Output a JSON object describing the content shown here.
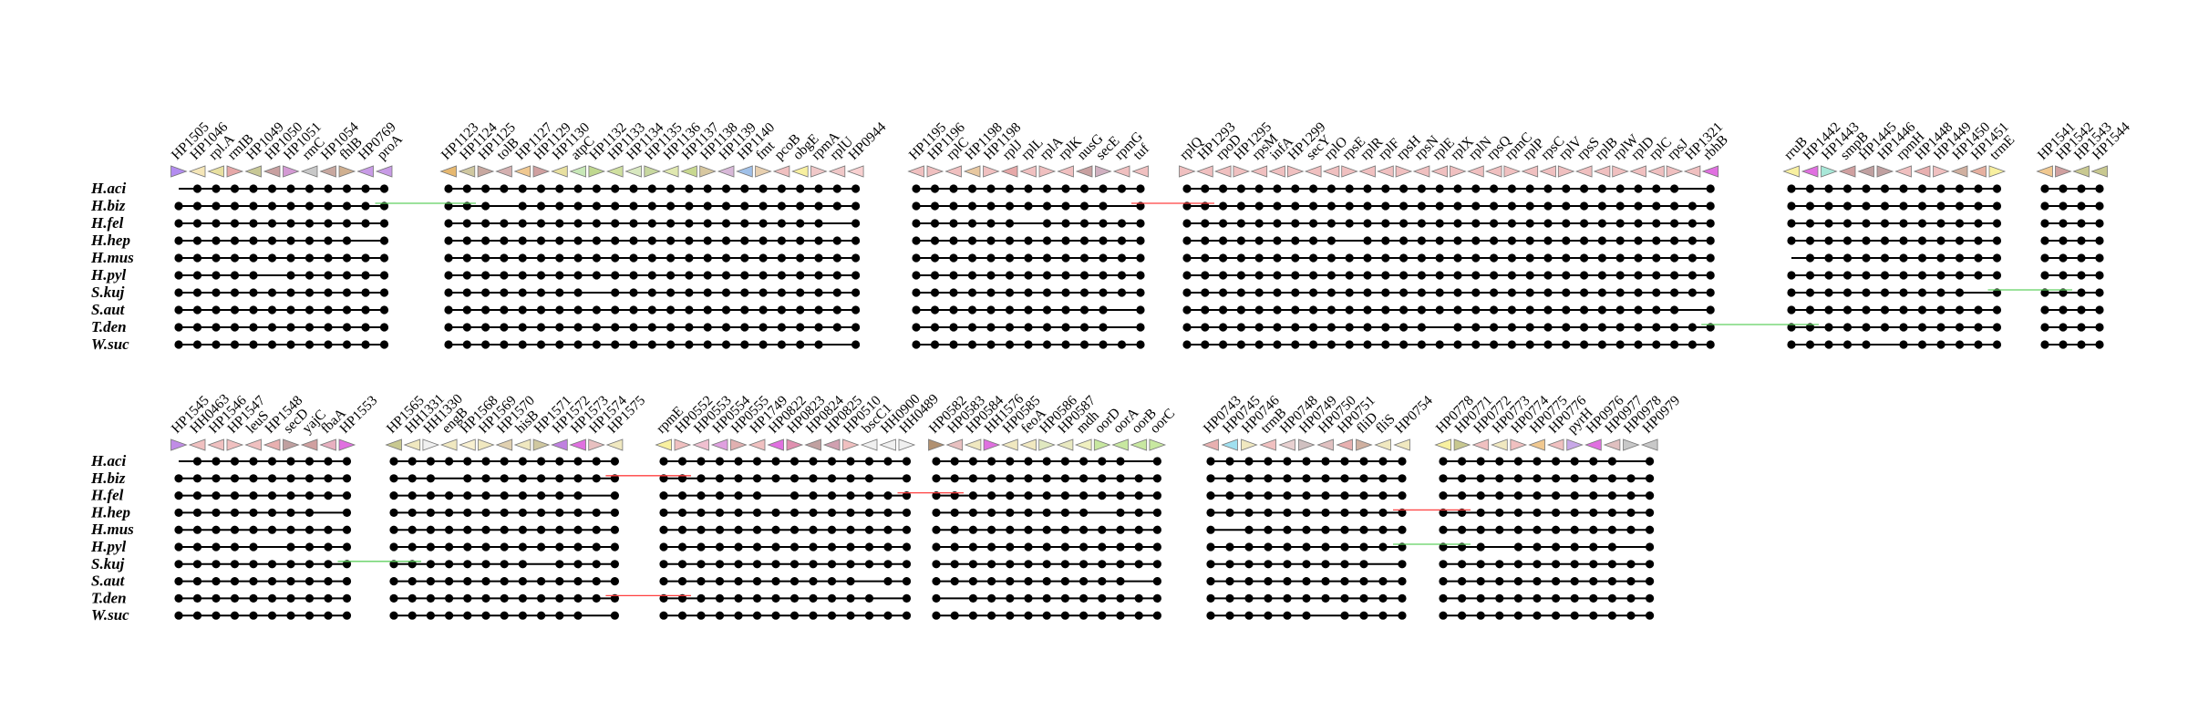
{
  "figure": {
    "description_panel_count": 2
  },
  "panels": [
    {
      "species": [
        "H.aci",
        "H.biz",
        "H.fel",
        "H.hep",
        "H.mus",
        "H.pyl",
        "S.kuj",
        "S.aut",
        "T.den",
        "W.suc"
      ],
      "blocks": [
        {
          "genes": [
            "HP1505",
            "HP1046",
            "rpl.A",
            "rmIB",
            "HP1049",
            "HP1050",
            "HP1051",
            "rmC",
            "HP1054",
            "fhlB",
            "HP0769",
            "proA"
          ],
          "colors": [
            "#b38cf0",
            "#f5e6b8",
            "#e8e0a0",
            "#e6a8a8",
            "#c8c896",
            "#c8a0a0",
            "#d49ad4",
            "#c8c8c8",
            "#c8a8a0",
            "#d0b090",
            "#c89be6",
            "#c89be6"
          ]
        },
        {
          "genes": [
            "HP1123",
            "HP1124",
            "HP1125",
            "tolB",
            "HP1127",
            "HP1129",
            "HP1130",
            "atpC",
            "HP1132",
            "HP1133",
            "HP1134",
            "HP1135",
            "HP1136",
            "HP1137",
            "HP1138",
            "HP1139",
            "HP1140",
            "fmt",
            "pcoB",
            "obgE",
            "rpmA",
            "rplU",
            "HP0944"
          ],
          "colors": [
            "#e6b870",
            "#d0c8a0",
            "#c8a8a0",
            "#d4b0b0",
            "#f0c890",
            "#d0a0a0",
            "#e8e0a0",
            "#c8e8b8",
            "#c0d890",
            "#d0e0a0",
            "#d8e8c0",
            "#c8d8a0",
            "#e0e8b0",
            "#c8d890",
            "#d8c8a0",
            "#d8b8d8",
            "#a0c0e8",
            "#e8d0b0",
            "#f0c0c0",
            "#f8f0a0",
            "#f0c8c8",
            "#f0c8c8",
            "#f8d0d0"
          ]
        },
        {
          "genes": [
            "HP1195",
            "HP1196",
            "rplC",
            "HP1198",
            "HP1198",
            "rplJ",
            "rplL",
            "rplA",
            "rplK",
            "nusG",
            "secE",
            "rpmG",
            "tuf"
          ],
          "colors": [
            "#f0c0c0",
            "#f0c0c0",
            "#f0c0c0",
            "#e8c8a0",
            "#f0c0c0",
            "#e6a8a8",
            "#f0c0c0",
            "#f0c0c0",
            "#f0c0c0",
            "#c8a0a0",
            "#d0b0c0",
            "#f0c0c0",
            "#f0c0c0"
          ]
        },
        {
          "genes": [
            "rplQ",
            "HP1293",
            "rpoD",
            "HP1295",
            "rpsM",
            "infA",
            "HP1299",
            "secY",
            "rplO",
            "rpsE",
            "rplR",
            "rplF",
            "rpsH",
            "rpsN",
            "rplE",
            "rplX",
            "rplN",
            "rpsQ",
            "rpmC",
            "rplP",
            "rpsC",
            "rplV",
            "rpsS",
            "rplB",
            "rplW",
            "rplD",
            "rplC",
            "rpsJ",
            "HP1321",
            "rbhB"
          ],
          "colors": [
            "#f0c0c0",
            "#f0c0c0",
            "#f0c0c0",
            "#f0c0c0",
            "#f0c0c0",
            "#f0c0c0",
            "#f0c0c0",
            "#f0c0c0",
            "#f0c0c0",
            "#f0c0c0",
            "#f0c0c0",
            "#f0c0c0",
            "#f0c0c0",
            "#f0c0c0",
            "#f0c0c0",
            "#f0c0c0",
            "#f0c0c0",
            "#f0c0c0",
            "#f0c0c0",
            "#f0c0c0",
            "#f0c0c0",
            "#f0c0c0",
            "#f0c0c0",
            "#f0c0c0",
            "#f0c0c0",
            "#f0c0c0",
            "#f0c0c0",
            "#f0c0c0",
            "#f0c0c0",
            "#e070e0"
          ]
        },
        {
          "genes": [
            "rruB",
            "HP1442",
            "HP1443",
            "smpB",
            "HP1445",
            "HP1446",
            "rpmH",
            "HP1448",
            "HP1449",
            "HP1450",
            "HP1451",
            "trmE"
          ],
          "colors": [
            "#f8f0a0",
            "#e070e0",
            "#a8e8d8",
            "#d0a0a0",
            "#c0a0a0",
            "#c0a0a0",
            "#f0c0c0",
            "#e8b0b0",
            "#f0c0c0",
            "#d0b0a0",
            "#e6b0a0",
            "#f8f0a0"
          ]
        },
        {
          "genes": [
            "HP1541",
            "HP1542",
            "HP1543",
            "HP1544"
          ],
          "colors": [
            "#f0c890",
            "#d0a0a0",
            "#c8c890",
            "#c8c890"
          ]
        }
      ]
    },
    {
      "species": [
        "H.aci",
        "H.biz",
        "H.fel",
        "H.hep",
        "H.mus",
        "H.pyl",
        "S.kuj",
        "S.aut",
        "T.den",
        "W.suc"
      ],
      "blocks": [
        {
          "genes": [
            "HP1545",
            "HH0463",
            "HP1546",
            "HP1547",
            "leuS",
            "HP1548",
            "secD",
            "yajC",
            "fbaA",
            "HP1553"
          ],
          "colors": [
            "#c08ce6",
            "#f0c0c0",
            "#f0c0c0",
            "#f0c0c0",
            "#f0c0c0",
            "#e8b0b0",
            "#c0a0a0",
            "#d0a0a0",
            "#e8b0c0",
            "#e070e0"
          ]
        },
        {
          "genes": [
            "HP1565",
            "HH1331",
            "HH1330",
            "engB",
            "HP1568",
            "HP1569",
            "HP1570",
            "hisB",
            "HP1571",
            "HP1572",
            "HP1573",
            "HP1574",
            "HP1575"
          ],
          "colors": [
            "#c8c890",
            "#f0e8c0",
            "#f0f0f0",
            "#f0e8c0",
            "#f8f0d0",
            "#f0e8c0",
            "#e0d0b0",
            "#f0e8c0",
            "#d0c8a0",
            "#c080e0",
            "#e070e0",
            "#e8c0c0",
            "#f0e8c0"
          ]
        },
        {
          "genes": [
            "rpmE",
            "HP0552",
            "HP0553",
            "HP0554",
            "HP0555",
            "HP1749",
            "HP0822",
            "HP0823",
            "HP0824",
            "HP0825",
            "HP0510",
            "bscC1",
            "HH0900",
            "HH0489"
          ],
          "colors": [
            "#f8f0a0",
            "#f0c0c0",
            "#f0c0d0",
            "#e0a0e0",
            "#e0b0b0",
            "#f0c0c0",
            "#e070e0",
            "#e090b0",
            "#c0a0a0",
            "#d0a0b0",
            "#f0c0c0",
            "#f0f0f0",
            "#f0f0f0",
            "#f0f0f0"
          ]
        },
        {
          "genes": [
            "HP0582",
            "HP0583",
            "HP0584",
            "HH1576",
            "HP0585",
            "feoA",
            "HP0586",
            "HP0587",
            "mdh",
            "oorD",
            "oorA",
            "oorB",
            "oorC"
          ],
          "colors": [
            "#b09070",
            "#e8c0c0",
            "#f0e8c0",
            "#e070e0",
            "#f0e8c0",
            "#f0e8c0",
            "#e0e8c0",
            "#e8e8c0",
            "#f0f0c0",
            "#c8e8a0",
            "#c8e8a0",
            "#c8e8a0",
            "#c8e8a0"
          ]
        },
        {
          "genes": [
            "HP0743",
            "HP0745",
            "HP0746",
            "trmB",
            "HP0748",
            "HP0749",
            "HP0750",
            "HP0751",
            "fliD",
            "fliS",
            "HP0754"
          ],
          "colors": [
            "#e8b0b0",
            "#a0e0f0",
            "#f0e8c0",
            "#f0c0c0",
            "#e8d0d0",
            "#d0c0c0",
            "#e0c0c0",
            "#e8b0b0",
            "#d0b0a0",
            "#f0e8c0",
            "#f0e8c0"
          ]
        },
        {
          "genes": [
            "HP0778",
            "HP0771",
            "HP0772",
            "HP0773",
            "HP0774",
            "HP0775",
            "HP0776",
            "pyrH",
            "HP0976",
            "HP0977",
            "HP0978",
            "HP0979"
          ],
          "colors": [
            "#f8f0a0",
            "#c8c890",
            "#f0c0c0",
            "#f0e8c0",
            "#f0c0c0",
            "#f0c890",
            "#f0c0c0",
            "#c8a8e8",
            "#e070e0",
            "#e0c0c0",
            "#c8c8c8",
            "#c8c8c8"
          ]
        }
      ]
    }
  ],
  "legend_colors": {
    "ortholog_dot": "#000000",
    "fusion_link": "#00ee00",
    "rearrangement_red": "#ff4040",
    "rearrangement_green": "#60d060",
    "paralog_grey": "#808080"
  }
}
